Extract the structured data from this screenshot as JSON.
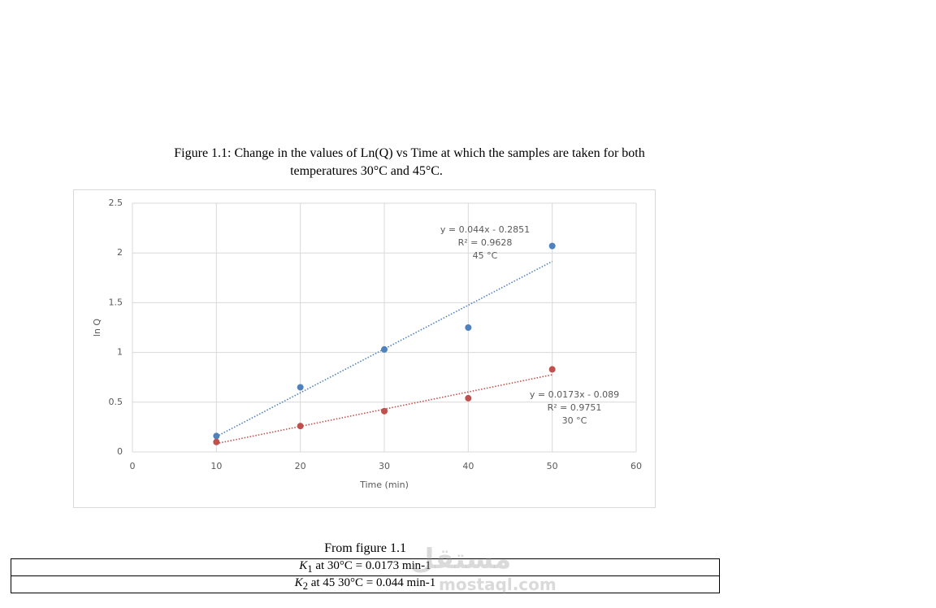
{
  "caption": [
    "Figure 1.1: Change in the values of Ln(Q) vs Time at which the samples are taken for both",
    "temperatures 30°C and 45°C."
  ],
  "chart_data": {
    "type": "scatter",
    "x_label": "Time (min)",
    "y_label": "ln Q",
    "x": [
      10,
      20,
      30,
      40,
      50
    ],
    "series": [
      {
        "name": "45 °C",
        "color": "#4f81bd",
        "values": [
          0.16,
          0.65,
          1.03,
          1.25,
          2.07
        ],
        "trendline": {
          "equation": "y = 0.044x - 0.2851",
          "r2": "R² = 0.9628",
          "slope": 0.044,
          "intercept": -0.2851
        }
      },
      {
        "name": "30 °C",
        "color": "#c0504d",
        "values": [
          0.1,
          0.26,
          0.41,
          0.54,
          0.83
        ],
        "trendline": {
          "equation": "y = 0.0173x - 0.089",
          "r2": "R² = 0.9751",
          "slope": 0.0173,
          "intercept": -0.089
        }
      }
    ],
    "xlim": [
      0,
      60
    ],
    "xticks": [
      0,
      10,
      20,
      30,
      40,
      50,
      60
    ],
    "ylim": [
      0,
      2.5
    ],
    "yticks": [
      0,
      0.5,
      1,
      1.5,
      2,
      2.5
    ],
    "grid": true
  },
  "note": "From figure 1.1",
  "table": {
    "rows": [
      {
        "symbol": "K",
        "subscript": "1",
        "text": " at 30°C = 0.0173 min-1"
      },
      {
        "symbol": "K",
        "subscript": "2",
        "text": " at 45 30°C = 0.044 min-1"
      }
    ]
  },
  "watermark": {
    "arabic": "مستقل",
    "latin": "mostaql.com"
  }
}
